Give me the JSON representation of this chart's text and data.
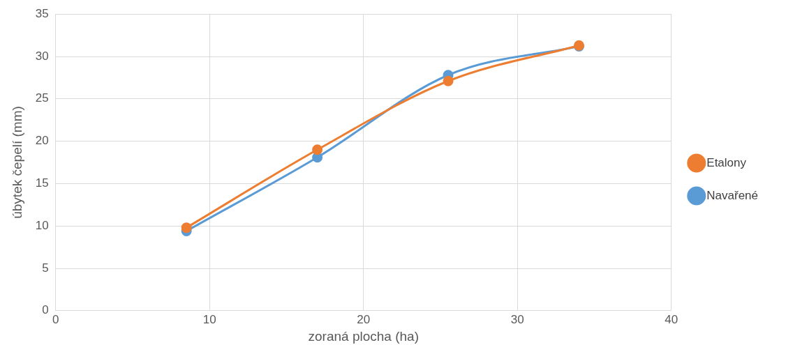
{
  "chart_data": {
    "type": "line",
    "xlabel": "zoraná plocha (ha)",
    "ylabel": "úbytek čepelí (mm)",
    "x": [
      8.5,
      17,
      25.5,
      34
    ],
    "series": [
      {
        "name": "Navařené",
        "color": "#5b9bd5",
        "values": [
          9.4,
          18.1,
          27.8,
          31.2
        ]
      },
      {
        "name": "Etalony",
        "color": "#ed7d31",
        "values": [
          9.8,
          19.0,
          27.1,
          31.3
        ]
      }
    ],
    "xlim": [
      0,
      40
    ],
    "xticks": [
      0,
      10,
      20,
      30,
      40
    ],
    "ylim": [
      0,
      35
    ],
    "yticks": [
      0,
      5,
      10,
      15,
      20,
      25,
      30,
      35
    ],
    "grid": true,
    "legend": "right",
    "marker": "circle",
    "line_style": "solid"
  }
}
